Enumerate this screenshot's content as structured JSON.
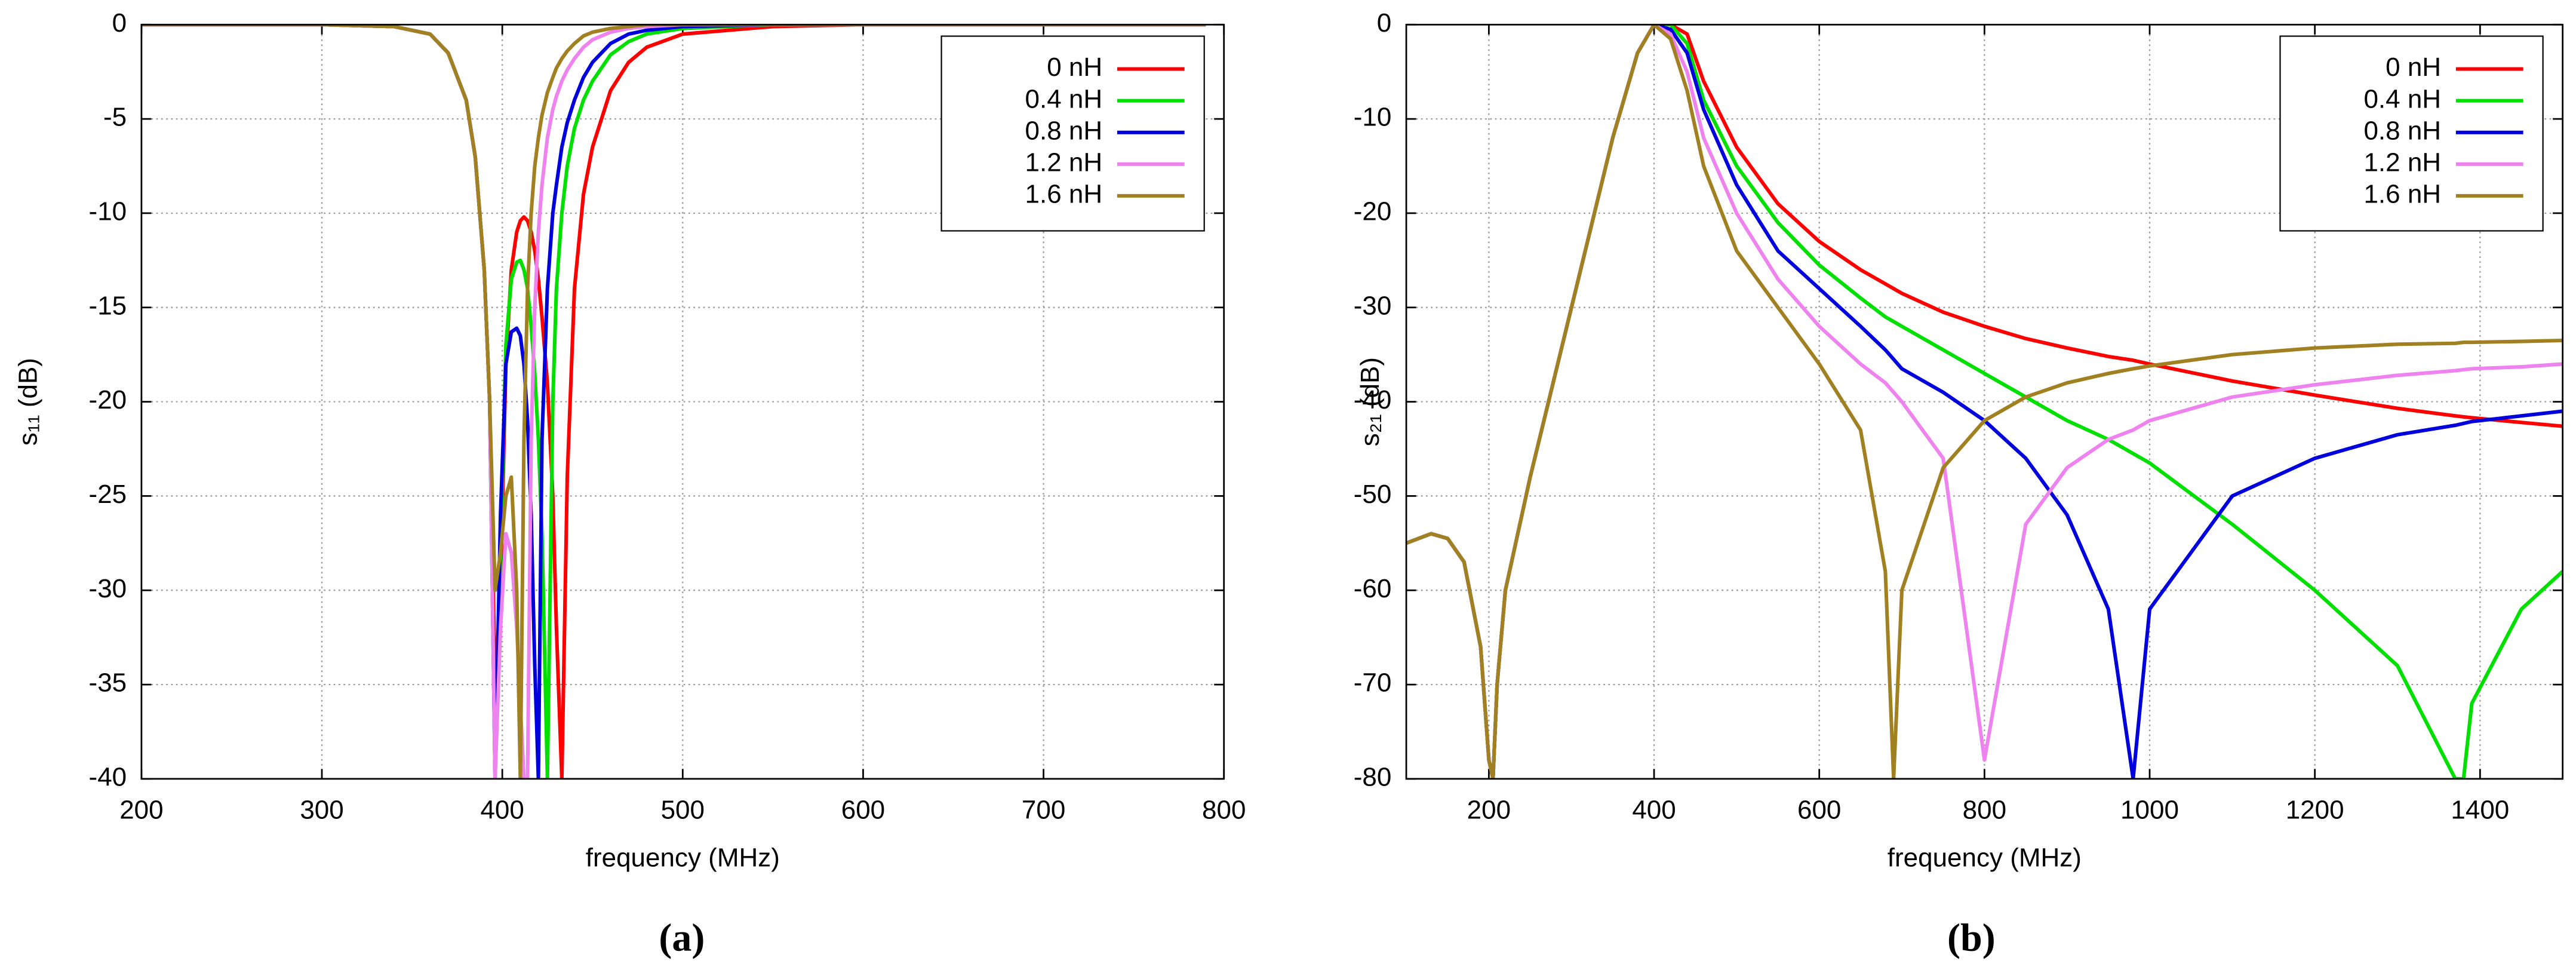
{
  "chart_data": [
    {
      "type": "line",
      "caption": "(a)",
      "xlabel": "frequency  (MHz)",
      "ylabel": "s₁₁ (dB)",
      "xlim": [
        200,
        800
      ],
      "ylim": [
        -40,
        0
      ],
      "xticks": [
        200,
        300,
        400,
        500,
        600,
        700,
        800
      ],
      "yticks": [
        0,
        -5,
        -10,
        -15,
        -20,
        -25,
        -30,
        -35,
        -40
      ],
      "grid": true,
      "legend": "top-right",
      "x": [
        200,
        300,
        340,
        360,
        370,
        380,
        385,
        390,
        393,
        396,
        399,
        402,
        405,
        408,
        410,
        412,
        414,
        416,
        418,
        420,
        422,
        425,
        428,
        430,
        433,
        436,
        440,
        445,
        450,
        460,
        470,
        480,
        500,
        550,
        600,
        700,
        790
      ],
      "series": [
        {
          "name": "0 nH",
          "color": "#ff0000",
          "values": [
            0,
            0,
            -0.1,
            -0.5,
            -1.5,
            -4,
            -7,
            -13,
            -20,
            -35,
            -30,
            -18,
            -13,
            -11,
            -10.4,
            -10.2,
            -10.4,
            -11,
            -12,
            -13.5,
            -15.5,
            -19,
            -25,
            -32,
            -40,
            -24,
            -14,
            -9,
            -6.5,
            -3.5,
            -2,
            -1.2,
            -0.5,
            -0.1,
            0,
            0,
            0
          ]
        },
        {
          "name": "0.4 nH",
          "color": "#00e000",
          "values": [
            0,
            0,
            -0.1,
            -0.5,
            -1.5,
            -4,
            -7,
            -13,
            -20,
            -40,
            -28,
            -17,
            -13.5,
            -12.6,
            -12.5,
            -13,
            -14,
            -16,
            -18.5,
            -22,
            -27,
            -40,
            -20,
            -14,
            -10,
            -7.5,
            -5.5,
            -4,
            -3,
            -1.6,
            -0.9,
            -0.5,
            -0.2,
            0,
            0,
            0,
            0
          ]
        },
        {
          "name": "0.8 nH",
          "color": "#0000dd",
          "values": [
            0,
            0,
            -0.1,
            -0.5,
            -1.5,
            -4,
            -7,
            -13,
            -20,
            -40,
            -26,
            -18,
            -16.3,
            -16.1,
            -16.5,
            -18,
            -21,
            -26,
            -34,
            -40,
            -22,
            -14,
            -10,
            -8.5,
            -6.5,
            -5.2,
            -4,
            -2.8,
            -2,
            -1,
            -0.5,
            -0.3,
            -0.1,
            0,
            0,
            0,
            0
          ]
        },
        {
          "name": "1.2 nH",
          "color": "#ee82ee",
          "values": [
            0,
            0,
            -0.1,
            -0.5,
            -1.5,
            -4,
            -7,
            -13,
            -20,
            -40,
            -32,
            -27,
            -28,
            -32,
            -36,
            -40,
            -40,
            -22,
            -15,
            -11,
            -8.5,
            -6,
            -4.5,
            -3.8,
            -3,
            -2.4,
            -1.8,
            -1.2,
            -0.8,
            -0.4,
            -0.2,
            -0.1,
            0,
            0,
            0,
            0,
            0
          ]
        },
        {
          "name": "1.6 nH",
          "color": "#a08020",
          "values": [
            0,
            0,
            -0.1,
            -0.5,
            -1.5,
            -4,
            -7,
            -13,
            -20,
            -30,
            -28,
            -25,
            -24,
            -30,
            -40,
            -22,
            -14,
            -10,
            -7.5,
            -6,
            -4.8,
            -3.6,
            -2.8,
            -2.3,
            -1.8,
            -1.4,
            -1,
            -0.6,
            -0.4,
            -0.2,
            -0.1,
            0,
            0,
            0,
            0,
            0,
            0
          ]
        }
      ]
    },
    {
      "type": "line",
      "caption": "(b)",
      "xlabel": "frequency  (MHz)",
      "ylabel": "s₂₁ (dB)",
      "xlim": [
        100,
        1500
      ],
      "ylim": [
        -80,
        0
      ],
      "xticks": [
        200,
        400,
        600,
        800,
        1000,
        1200,
        1400
      ],
      "yticks": [
        0,
        -10,
        -20,
        -30,
        -40,
        -50,
        -60,
        -70,
        -80
      ],
      "grid": true,
      "legend": "top-right",
      "x": [
        100,
        130,
        150,
        170,
        190,
        200,
        205,
        210,
        220,
        250,
        300,
        350,
        380,
        400,
        420,
        440,
        460,
        500,
        550,
        600,
        650,
        680,
        690,
        700,
        750,
        800,
        850,
        900,
        950,
        980,
        1000,
        1100,
        1200,
        1300,
        1370,
        1380,
        1390,
        1450,
        1500
      ],
      "series": [
        {
          "name": "0 nH",
          "color": "#ff0000",
          "values": [
            -55,
            -54,
            -54.5,
            -57,
            -66,
            -78,
            -80,
            -70,
            -60,
            -48,
            -30,
            -12,
            -3,
            0,
            0,
            -1,
            -6,
            -13,
            -19,
            -23,
            -26,
            -27.5,
            -28,
            -28.5,
            -30.5,
            -32,
            -33.3,
            -34.3,
            -35.2,
            -35.6,
            -36,
            -37.8,
            -39.3,
            -40.7,
            -41.5,
            -41.6,
            -41.7,
            -42.2,
            -42.6
          ]
        },
        {
          "name": "0.4 nH",
          "color": "#00e000",
          "values": [
            -55,
            -54,
            -54.5,
            -57,
            -66,
            -78,
            -80,
            -70,
            -60,
            -48,
            -30,
            -12,
            -3,
            0,
            0,
            -2,
            -8,
            -15,
            -21,
            -25.5,
            -29,
            -31,
            -31.5,
            -32,
            -34.5,
            -37,
            -39.5,
            -42,
            -44,
            -45.5,
            -46.5,
            -53,
            -60,
            -68,
            -80,
            -80,
            -72,
            -62,
            -58
          ]
        },
        {
          "name": "0.8 nH",
          "color": "#0000dd",
          "values": [
            -55,
            -54,
            -54.5,
            -57,
            -66,
            -78,
            -80,
            -70,
            -60,
            -48,
            -30,
            -12,
            -3,
            0,
            -0.5,
            -3,
            -9,
            -17,
            -24,
            -28,
            -32,
            -34.5,
            -35.5,
            -36.5,
            -39,
            -42,
            -46,
            -52,
            -62,
            -80,
            -62,
            -50,
            -46,
            -43.5,
            -42.5,
            -42.3,
            -42.1,
            -41.5,
            -41
          ]
        },
        {
          "name": "1.2 nH",
          "color": "#ee82ee",
          "values": [
            -55,
            -54,
            -54.5,
            -57,
            -66,
            -78,
            -80,
            -70,
            -60,
            -48,
            -30,
            -12,
            -3,
            0,
            -1,
            -5,
            -12,
            -20,
            -27,
            -32,
            -36,
            -38,
            -39,
            -40,
            -46,
            -78,
            -53,
            -47,
            -44,
            -43,
            -42,
            -39.5,
            -38.2,
            -37.2,
            -36.7,
            -36.6,
            -36.5,
            -36.3,
            -36
          ]
        },
        {
          "name": "1.6 nH",
          "color": "#a08020",
          "values": [
            -55,
            -54,
            -54.5,
            -57,
            -66,
            -78,
            -80,
            -70,
            -60,
            -48,
            -30,
            -12,
            -3,
            0,
            -1.5,
            -7,
            -15,
            -24,
            -30,
            -36,
            -43,
            -58,
            -80,
            -60,
            -47,
            -42,
            -39.5,
            -38,
            -37,
            -36.5,
            -36.2,
            -35,
            -34.3,
            -33.9,
            -33.8,
            -33.7,
            -33.7,
            -33.6,
            -33.5
          ]
        }
      ]
    }
  ]
}
